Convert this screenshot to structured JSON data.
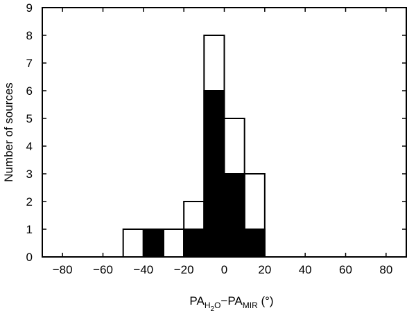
{
  "chart_data": {
    "type": "bar",
    "subtype": "overlaid-histogram",
    "xlabel": {
      "parts": [
        "PA",
        "H",
        "2",
        "O",
        "−PA",
        "MIR",
        " (°)"
      ]
    },
    "ylabel": "Number of sources",
    "xlim": [
      -90,
      90
    ],
    "ylim": [
      0,
      9
    ],
    "x_ticks": [
      -80,
      -60,
      -40,
      -20,
      0,
      20,
      40,
      60,
      80
    ],
    "x_tick_labels": [
      "−80",
      "−60",
      "−40",
      "−20",
      "0",
      "20",
      "40",
      "60",
      "80"
    ],
    "y_ticks": [
      0,
      1,
      2,
      3,
      4,
      5,
      6,
      7,
      8,
      9
    ],
    "bin_width": 10,
    "grid": false,
    "series": [
      {
        "fill": "none",
        "bins": [
          {
            "x0": -50,
            "x1": -40,
            "count": 1
          },
          {
            "x0": -40,
            "x1": -30,
            "count": 1
          },
          {
            "x0": -30,
            "x1": -20,
            "count": 1
          },
          {
            "x0": -20,
            "x1": -10,
            "count": 2
          },
          {
            "x0": -10,
            "x1": 0,
            "count": 8
          },
          {
            "x0": 0,
            "x1": 10,
            "count": 5
          },
          {
            "x0": 10,
            "x1": 20,
            "count": 3
          }
        ]
      },
      {
        "fill": "#000000",
        "bins": [
          {
            "x0": -40,
            "x1": -30,
            "count": 1
          },
          {
            "x0": -20,
            "x1": -10,
            "count": 1
          },
          {
            "x0": -10,
            "x1": 0,
            "count": 6
          },
          {
            "x0": 0,
            "x1": 10,
            "count": 3
          },
          {
            "x0": 10,
            "x1": 20,
            "count": 1
          }
        ]
      }
    ]
  }
}
